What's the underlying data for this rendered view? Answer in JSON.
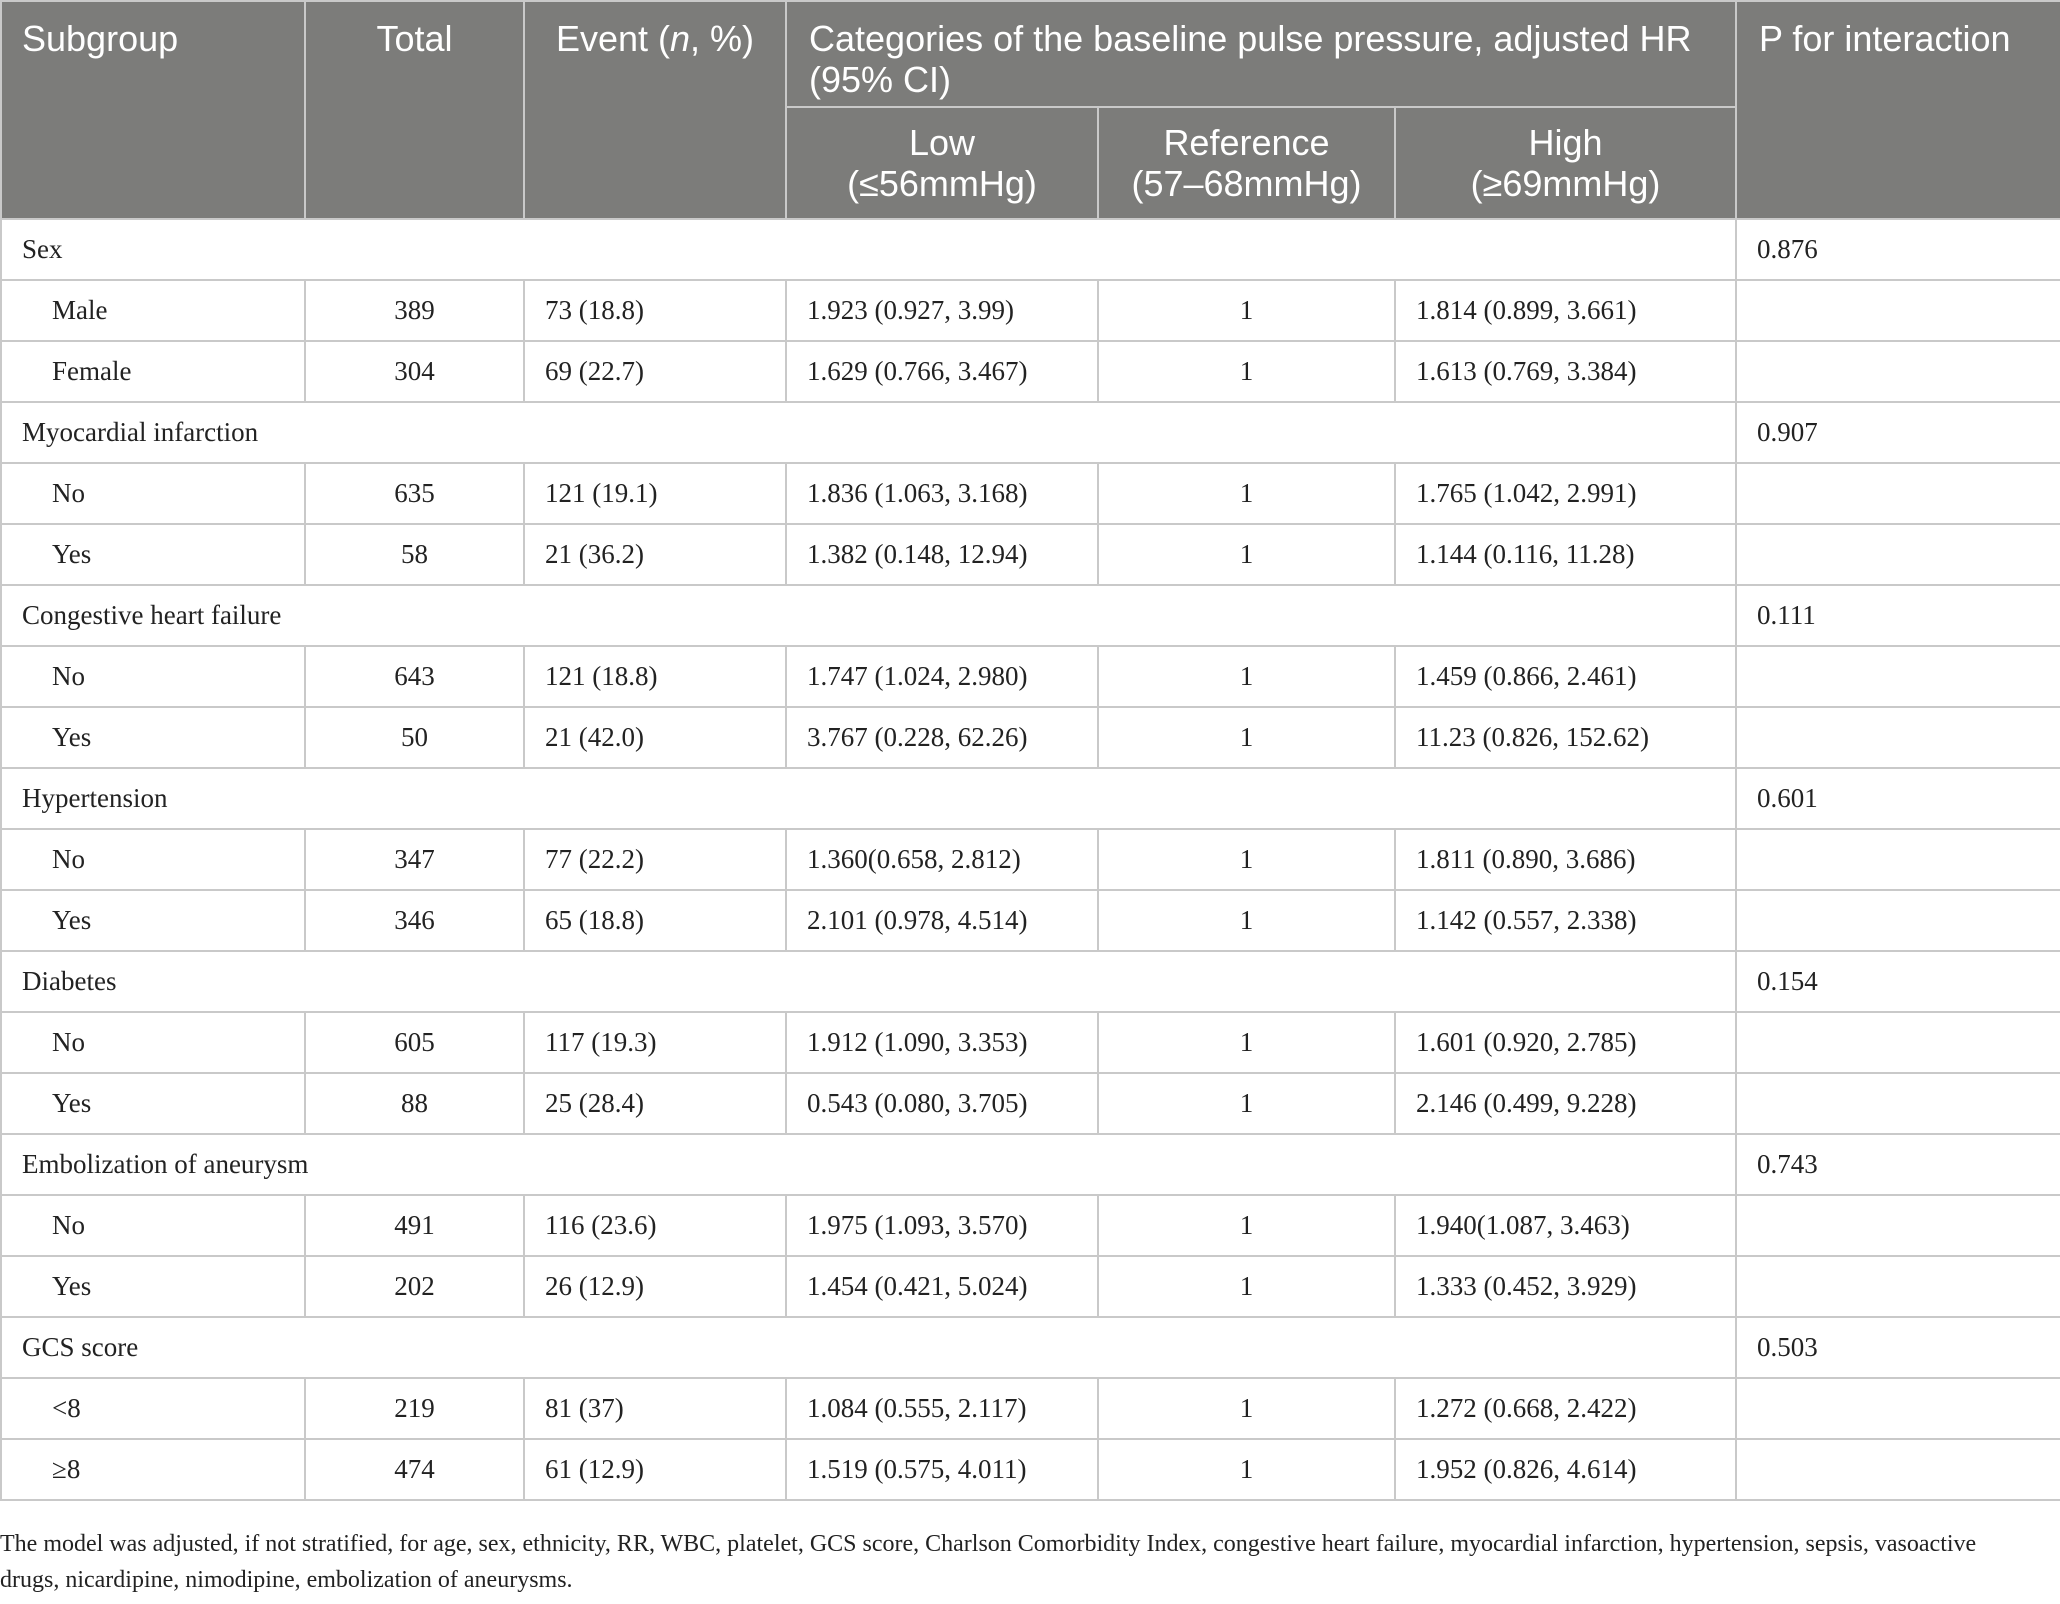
{
  "header": {
    "subgroup": "Subgroup",
    "total": "Total",
    "event_prefix": "Event (",
    "event_italic": "n",
    "event_suffix": ", %)",
    "categories": "Categories of the baseline pulse pressure, adjusted HR (95% CI)",
    "p_interaction": "P for interaction",
    "low_line1": "Low",
    "low_line2": "(≤56mmHg)",
    "ref_line1": "Reference",
    "ref_line2": "(57–68mmHg)",
    "high_line1": "High",
    "high_line2": "(≥69mmHg)"
  },
  "groups": [
    {
      "name": "Sex",
      "p": "0.876",
      "rows": [
        {
          "label": "Male",
          "total": "389",
          "event": "73 (18.8)",
          "low": "1.923 (0.927, 3.99)",
          "ref": "1",
          "high": "1.814 (0.899, 3.661)"
        },
        {
          "label": "Female",
          "total": "304",
          "event": "69 (22.7)",
          "low": "1.629 (0.766, 3.467)",
          "ref": "1",
          "high": "1.613 (0.769, 3.384)"
        }
      ]
    },
    {
      "name": "Myocardial infarction",
      "p": "0.907",
      "rows": [
        {
          "label": "No",
          "total": "635",
          "event": "121 (19.1)",
          "low": "1.836 (1.063, 3.168)",
          "ref": "1",
          "high": "1.765 (1.042, 2.991)"
        },
        {
          "label": "Yes",
          "total": "58",
          "event": "21 (36.2)",
          "low": "1.382 (0.148, 12.94)",
          "ref": "1",
          "high": "1.144 (0.116, 11.28)"
        }
      ]
    },
    {
      "name": "Congestive heart failure",
      "p": "0.111",
      "rows": [
        {
          "label": "No",
          "total": "643",
          "event": "121 (18.8)",
          "low": "1.747 (1.024, 2.980)",
          "ref": "1",
          "high": "1.459 (0.866, 2.461)"
        },
        {
          "label": "Yes",
          "total": "50",
          "event": "21 (42.0)",
          "low": "3.767 (0.228, 62.26)",
          "ref": "1",
          "high": "11.23 (0.826, 152.62)"
        }
      ]
    },
    {
      "name": "Hypertension",
      "p": "0.601",
      "rows": [
        {
          "label": "No",
          "total": "347",
          "event": "77 (22.2)",
          "low": "1.360(0.658, 2.812)",
          "ref": "1",
          "high": "1.811 (0.890, 3.686)"
        },
        {
          "label": "Yes",
          "total": "346",
          "event": "65 (18.8)",
          "low": "2.101 (0.978, 4.514)",
          "ref": "1",
          "high": "1.142 (0.557, 2.338)"
        }
      ]
    },
    {
      "name": "Diabetes",
      "p": "0.154",
      "rows": [
        {
          "label": "No",
          "total": "605",
          "event": "117 (19.3)",
          "low": "1.912 (1.090, 3.353)",
          "ref": "1",
          "high": "1.601 (0.920, 2.785)"
        },
        {
          "label": "Yes",
          "total": "88",
          "event": "25 (28.4)",
          "low": "0.543 (0.080, 3.705)",
          "ref": "1",
          "high": "2.146 (0.499, 9.228)"
        }
      ]
    },
    {
      "name": "Embolization of aneurysm",
      "p": "0.743",
      "rows": [
        {
          "label": "No",
          "total": "491",
          "event": "116 (23.6)",
          "low": "1.975 (1.093, 3.570)",
          "ref": "1",
          "high": "1.940(1.087, 3.463)"
        },
        {
          "label": "Yes",
          "total": "202",
          "event": "26 (12.9)",
          "low": "1.454 (0.421, 5.024)",
          "ref": "1",
          "high": "1.333 (0.452, 3.929)"
        }
      ]
    },
    {
      "name": "GCS score",
      "p": "0.503",
      "rows": [
        {
          "label": "<8",
          "total": "219",
          "event": "81 (37)",
          "low": "1.084 (0.555, 2.117)",
          "ref": "1",
          "high": "1.272 (0.668, 2.422)"
        },
        {
          "label": "≥8",
          "total": "474",
          "event": "61 (12.9)",
          "low": "1.519 (0.575, 4.011)",
          "ref": "1",
          "high": "1.952 (0.826, 4.614)"
        }
      ]
    }
  ],
  "footnote": "The model was adjusted, if not stratified, for age, sex, ethnicity, RR, WBC, platelet, GCS score, Charlson Comorbidity Index, congestive heart failure, myocardial infarction, hypertension, sepsis, vasoactive drugs, nicardipine, nimodipine, embolization of aneurysms."
}
